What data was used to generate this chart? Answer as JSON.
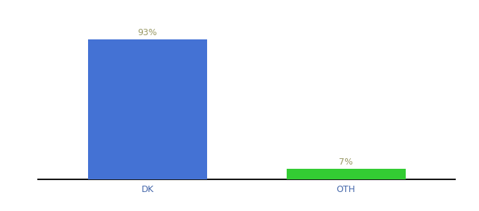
{
  "categories": [
    "DK",
    "OTH"
  ],
  "values": [
    93,
    7
  ],
  "bar_colors": [
    "#4472d4",
    "#33cc33"
  ],
  "label_texts": [
    "93%",
    "7%"
  ],
  "ylim": [
    0,
    108
  ],
  "background_color": "#ffffff",
  "label_color": "#999966",
  "bar_width": 0.6,
  "xlabel_fontsize": 9,
  "label_fontsize": 9,
  "tick_color": "#4466aa"
}
